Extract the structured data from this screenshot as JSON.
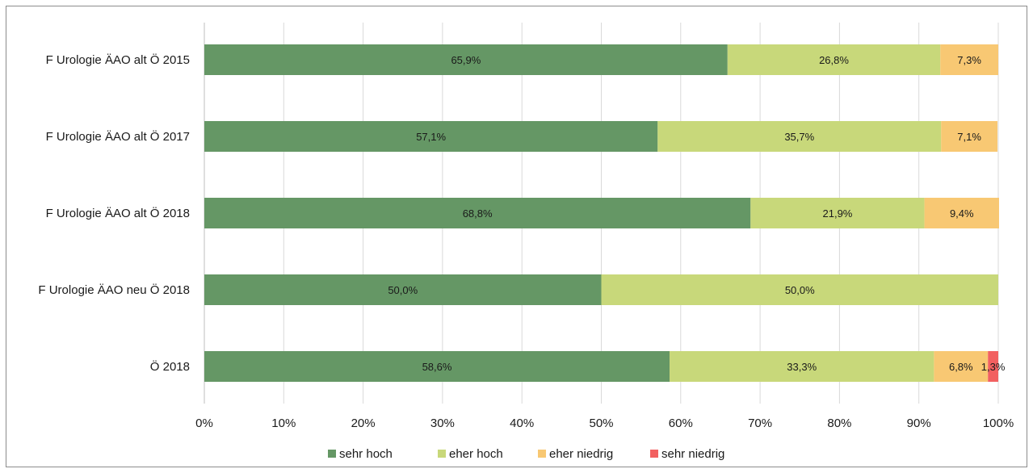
{
  "chart_data": {
    "type": "bar",
    "orientation": "horizontal",
    "stacked": true,
    "title": "",
    "xlabel": "",
    "ylabel": "",
    "xlim": [
      0,
      100
    ],
    "x_ticks": [
      "0%",
      "10%",
      "20%",
      "30%",
      "40%",
      "50%",
      "60%",
      "70%",
      "80%",
      "90%",
      "100%"
    ],
    "grid": true,
    "legend_position": "bottom",
    "categories": [
      "F Urologie ÄAO alt Ö 2015",
      "F Urologie ÄAO alt Ö 2017",
      "F Urologie ÄAO alt Ö 2018",
      "F Urologie ÄAO neu Ö 2018",
      "Ö 2018"
    ],
    "series": [
      {
        "name": "sehr hoch",
        "color": "#659765",
        "values": [
          65.9,
          57.1,
          68.8,
          50.0,
          58.6
        ],
        "labels": [
          "65,9%",
          "57,1%",
          "68,8%",
          "50,0%",
          "58,6%"
        ]
      },
      {
        "name": "eher hoch",
        "color": "#c8d87a",
        "values": [
          26.8,
          35.7,
          21.9,
          50.0,
          33.3
        ],
        "labels": [
          "26,8%",
          "35,7%",
          "21,9%",
          "50,0%",
          "33,3%"
        ]
      },
      {
        "name": "eher niedrig",
        "color": "#f8c873",
        "values": [
          7.3,
          7.1,
          9.4,
          0,
          6.8
        ],
        "labels": [
          "7,3%",
          "7,1%",
          "9,4%",
          "",
          "6,8%"
        ]
      },
      {
        "name": "sehr niedrig",
        "color": "#f26060",
        "values": [
          0,
          0,
          0,
          0,
          1.3
        ],
        "labels": [
          "",
          "",
          "",
          "",
          "1,3%"
        ]
      }
    ]
  }
}
